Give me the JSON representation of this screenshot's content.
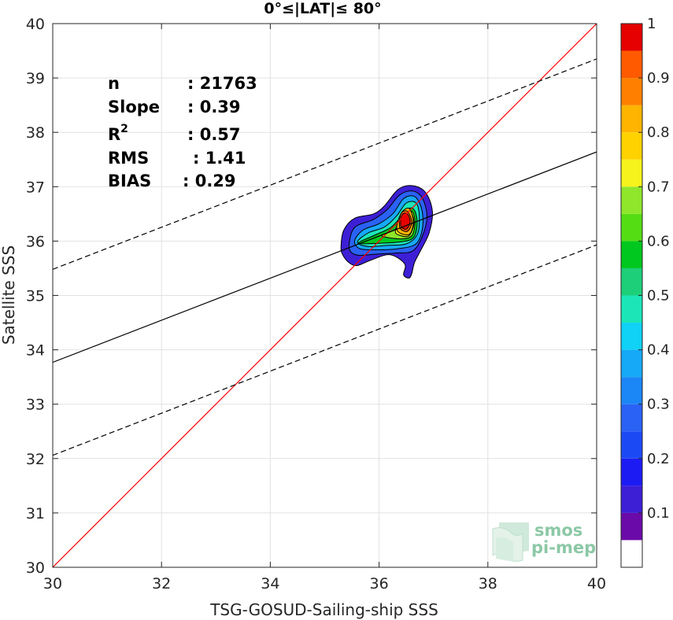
{
  "chart_data": {
    "type": "contour-scatter",
    "title": "0°≤|LAT|≤ 80°",
    "xlabel": "TSG-GOSUD-Sailing-ship SSS",
    "ylabel": "Satellite SSS",
    "xlim": [
      30,
      40
    ],
    "ylim": [
      30,
      40
    ],
    "xticks": [
      30,
      32,
      34,
      36,
      38,
      40
    ],
    "yticks": [
      30,
      31,
      32,
      33,
      34,
      35,
      36,
      37,
      38,
      39,
      40
    ],
    "grid": true,
    "stats": [
      {
        "label": "n",
        "value": ": 21763"
      },
      {
        "label": "Slope",
        "value": ": 0.39"
      },
      {
        "label": "R",
        "sup": "2",
        "value": ": 0.57"
      },
      {
        "label": "RMS",
        "value": ": 1.41"
      },
      {
        "label": "BIAS",
        "value": ": 0.29"
      }
    ],
    "lines": [
      {
        "name": "identity",
        "color": "#ff0000",
        "style": "solid",
        "points": [
          [
            30,
            30
          ],
          [
            40,
            40
          ]
        ]
      },
      {
        "name": "fit",
        "color": "#000000",
        "style": "solid",
        "points": [
          [
            30,
            33.77
          ],
          [
            40,
            37.64
          ]
        ]
      },
      {
        "name": "fit-upper",
        "color": "#000000",
        "style": "dashed",
        "points": [
          [
            30,
            35.48
          ],
          [
            40,
            39.35
          ]
        ]
      },
      {
        "name": "fit-lower",
        "color": "#000000",
        "style": "dashed",
        "points": [
          [
            30,
            32.06
          ],
          [
            40,
            35.93
          ]
        ]
      }
    ],
    "density_peak": {
      "x": 36.5,
      "y": 36.4
    },
    "contours": [
      {
        "level": 0.05,
        "color": "#3d1fd6",
        "points": [
          [
            35.3,
            35.9
          ],
          [
            35.35,
            36.2
          ],
          [
            35.55,
            36.42
          ],
          [
            35.9,
            36.5
          ],
          [
            36.1,
            36.65
          ],
          [
            36.35,
            36.95
          ],
          [
            36.6,
            37.02
          ],
          [
            36.85,
            36.9
          ],
          [
            36.98,
            36.55
          ],
          [
            36.92,
            36.15
          ],
          [
            36.75,
            35.8
          ],
          [
            36.65,
            35.6
          ],
          [
            36.6,
            35.4
          ],
          [
            36.55,
            35.32
          ],
          [
            36.45,
            35.38
          ],
          [
            36.47,
            35.58
          ],
          [
            36.2,
            35.75
          ],
          [
            35.85,
            35.65
          ],
          [
            35.6,
            35.55
          ],
          [
            35.45,
            35.6
          ],
          [
            35.33,
            35.75
          ]
        ]
      },
      {
        "level": 0.25,
        "color": "#2a62f5",
        "points": [
          [
            35.45,
            35.95
          ],
          [
            35.55,
            36.25
          ],
          [
            35.9,
            36.4
          ],
          [
            36.15,
            36.58
          ],
          [
            36.38,
            36.85
          ],
          [
            36.62,
            36.92
          ],
          [
            36.8,
            36.78
          ],
          [
            36.88,
            36.45
          ],
          [
            36.8,
            36.1
          ],
          [
            36.62,
            35.82
          ],
          [
            36.3,
            35.78
          ],
          [
            35.95,
            35.76
          ],
          [
            35.62,
            35.74
          ],
          [
            35.48,
            35.8
          ]
        ]
      },
      {
        "level": 0.35,
        "color": "#16a9f8",
        "points": [
          [
            35.55,
            36.0
          ],
          [
            35.7,
            36.2
          ],
          [
            36.0,
            36.32
          ],
          [
            36.25,
            36.5
          ],
          [
            36.45,
            36.78
          ],
          [
            36.65,
            36.82
          ],
          [
            36.78,
            36.6
          ],
          [
            36.8,
            36.25
          ],
          [
            36.68,
            35.95
          ],
          [
            36.35,
            35.86
          ],
          [
            35.95,
            35.84
          ],
          [
            35.65,
            35.86
          ]
        ]
      },
      {
        "level": 0.45,
        "color": "#1ce6b8",
        "points": [
          [
            35.6,
            35.98
          ],
          [
            35.8,
            36.15
          ],
          [
            36.1,
            36.26
          ],
          [
            36.32,
            36.46
          ],
          [
            36.5,
            36.7
          ],
          [
            36.68,
            36.7
          ],
          [
            36.74,
            36.45
          ],
          [
            36.7,
            36.12
          ],
          [
            36.5,
            35.95
          ],
          [
            36.15,
            35.92
          ],
          [
            35.8,
            35.9
          ]
        ]
      },
      {
        "level": 0.5,
        "color": "#00c81e",
        "points": [
          [
            35.62,
            35.96
          ],
          [
            35.9,
            36.1
          ],
          [
            36.2,
            36.24
          ],
          [
            36.38,
            36.42
          ],
          [
            36.55,
            36.6
          ],
          [
            36.66,
            36.55
          ],
          [
            36.7,
            36.3
          ],
          [
            36.62,
            36.05
          ],
          [
            36.35,
            35.98
          ],
          [
            36.0,
            35.96
          ]
        ]
      },
      {
        "level": 0.6,
        "color": "#8fe62a",
        "points": [
          [
            36.05,
            36.1
          ],
          [
            36.3,
            36.22
          ],
          [
            36.45,
            36.45
          ],
          [
            36.6,
            36.55
          ],
          [
            36.66,
            36.35
          ],
          [
            36.6,
            36.1
          ],
          [
            36.4,
            36.04
          ]
        ]
      },
      {
        "level": 0.65,
        "color": "#f6f21c",
        "points": [
          [
            36.3,
            36.18
          ],
          [
            36.42,
            36.45
          ],
          [
            36.58,
            36.52
          ],
          [
            36.64,
            36.32
          ],
          [
            36.55,
            36.1
          ],
          [
            36.4,
            36.1
          ]
        ]
      },
      {
        "level": 0.7,
        "color": "#ffb400",
        "points": [
          [
            36.33,
            36.2
          ],
          [
            36.4,
            36.5
          ],
          [
            36.55,
            36.6
          ],
          [
            36.63,
            36.35
          ],
          [
            36.55,
            36.12
          ]
        ]
      },
      {
        "level": 0.8,
        "color": "#ff5a00",
        "points": [
          [
            36.38,
            36.25
          ],
          [
            36.4,
            36.5
          ],
          [
            36.52,
            36.55
          ],
          [
            36.6,
            36.35
          ],
          [
            36.52,
            36.18
          ]
        ]
      },
      {
        "level": 0.9,
        "color": "#e60000",
        "points": [
          [
            36.4,
            36.28
          ],
          [
            36.42,
            36.48
          ],
          [
            36.52,
            36.5
          ],
          [
            36.57,
            36.35
          ],
          [
            36.5,
            36.22
          ]
        ]
      }
    ],
    "colorbar": {
      "ticks": [
        "0.1",
        "0.2",
        "0.3",
        "0.4",
        "0.5",
        "0.6",
        "0.7",
        "0.8",
        "0.9",
        "1"
      ],
      "tick_values": [
        0.1,
        0.2,
        0.3,
        0.4,
        0.5,
        0.6,
        0.7,
        0.8,
        0.9,
        1.0
      ],
      "levels": [
        0,
        0.05,
        0.1,
        0.15,
        0.2,
        0.25,
        0.3,
        0.35,
        0.4,
        0.45,
        0.5,
        0.55,
        0.6,
        0.65,
        0.7,
        0.75,
        0.8,
        0.85,
        0.9,
        0.95,
        1.0
      ],
      "colors": [
        "#ffffff",
        "#6a0aa8",
        "#3d1fd6",
        "#1d1bf4",
        "#1b4af5",
        "#2a62f5",
        "#1b86f6",
        "#16a9f8",
        "#0fd2f6",
        "#1ce6b8",
        "#1ecf7a",
        "#00c81e",
        "#55dd14",
        "#8fe62a",
        "#f6f21c",
        "#ffd200",
        "#ffb400",
        "#ff8000",
        "#ff5a00",
        "#e60000",
        "#8b0000"
      ]
    }
  },
  "watermark": {
    "line1": "smos",
    "line2": "pi-mep",
    "color": "#8cc8a6"
  }
}
